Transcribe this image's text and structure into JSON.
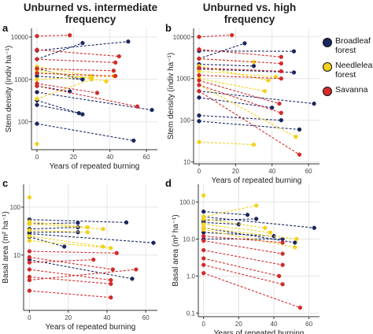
{
  "figure": {
    "groups": [
      {
        "name": "Broadleaf forest",
        "color": "#1a2660"
      },
      {
        "name": "Needleleaf forest",
        "color": "#f2d21b"
      },
      {
        "name": "Savanna",
        "color": "#d42a2a"
      }
    ],
    "panel_titles": {
      "a": "Unburned vs. intermediate\nfrequency",
      "b": "Unburned vs. high\nfrequency"
    }
  },
  "chart_data": [
    {
      "panel": "a",
      "type": "scatter",
      "title": "Unburned vs. intermediate\nfrequency",
      "xlabel": "Years of repeated burning",
      "ylabel": "Stem density (indiv ha⁻¹)",
      "xlim": [
        -3,
        66
      ],
      "ylim": [
        22,
        16000
      ],
      "log_y": true,
      "xticks": [
        0,
        20,
        40,
        60
      ],
      "yticks": [
        100,
        1000,
        10000
      ],
      "ytick_labels": [
        "100",
        "1000",
        "10000"
      ],
      "grid": true,
      "series": [
        {
          "group": "Broadleaf forest",
          "x": [
            0,
            50
          ],
          "y": [
            4800,
            7800
          ]
        },
        {
          "group": "Broadleaf forest",
          "x": [
            0,
            25
          ],
          "y": [
            3000,
            7200
          ]
        },
        {
          "group": "Broadleaf forest",
          "x": [
            0,
            25
          ],
          "y": [
            1800,
            1000
          ]
        },
        {
          "group": "Broadleaf forest",
          "x": [
            0,
            25
          ],
          "y": [
            1200,
            1000
          ]
        },
        {
          "group": "Broadleaf forest",
          "x": [
            0,
            18
          ],
          "y": [
            700,
            520
          ]
        },
        {
          "group": "Broadleaf forest",
          "x": [
            0,
            63
          ],
          "y": [
            500,
            190
          ]
        },
        {
          "group": "Broadleaf forest",
          "x": [
            0,
            25
          ],
          "y": [
            320,
            150
          ]
        },
        {
          "group": "Broadleaf forest",
          "x": [
            0,
            23
          ],
          "y": [
            250,
            160
          ]
        },
        {
          "group": "Broadleaf forest",
          "x": [
            0,
            53
          ],
          "y": [
            90,
            36
          ]
        },
        {
          "group": "Needleleaf forest",
          "x": [
            0,
            30
          ],
          "y": [
            2000,
            1200
          ]
        },
        {
          "group": "Needleleaf forest",
          "x": [
            0,
            38
          ],
          "y": [
            1700,
            900
          ]
        },
        {
          "group": "Needleleaf forest",
          "x": [
            0,
            30
          ],
          "y": [
            1500,
            1100
          ]
        },
        {
          "group": "Needleleaf forest",
          "x": [
            0,
            42
          ],
          "y": [
            1000,
            1200
          ]
        },
        {
          "group": "Needleleaf forest",
          "x": [
            0,
            30
          ],
          "y": [
            350,
            1000
          ]
        },
        {
          "group": "Needleleaf forest",
          "x": [
            0
          ],
          "y": [
            30
          ]
        },
        {
          "group": "Savanna",
          "x": [
            0,
            18
          ],
          "y": [
            10500,
            11000
          ]
        },
        {
          "group": "Savanna",
          "x": [
            0,
            45
          ],
          "y": [
            5000,
            3500
          ]
        },
        {
          "group": "Savanna",
          "x": [
            0,
            43
          ],
          "y": [
            3000,
            2500
          ]
        },
        {
          "group": "Savanna",
          "x": [
            0,
            42
          ],
          "y": [
            1800,
            1600
          ]
        },
        {
          "group": "Savanna",
          "x": [
            0,
            43
          ],
          "y": [
            1400,
            1200
          ]
        },
        {
          "group": "Savanna",
          "x": [
            0,
            33
          ],
          "y": [
            800,
            480
          ]
        },
        {
          "group": "Savanna",
          "x": [
            0,
            55
          ],
          "y": [
            700,
            230
          ]
        }
      ]
    },
    {
      "panel": "b",
      "type": "scatter",
      "title": "Unburned vs. high\nfrequency",
      "xlabel": "Years of repeated burning",
      "ylabel": "Stem density (indiv ha⁻¹)",
      "xlim": [
        -3,
        66
      ],
      "ylim": [
        9,
        16000
      ],
      "log_y": true,
      "xticks": [
        0,
        20,
        40,
        60
      ],
      "yticks": [
        10,
        100,
        1000,
        10000
      ],
      "ytick_labels": [
        "10",
        "100",
        "1000",
        "10000"
      ],
      "grid": true,
      "series": [
        {
          "group": "Broadleaf forest",
          "x": [
            0,
            52
          ],
          "y": [
            4600,
            4500
          ]
        },
        {
          "group": "Broadleaf forest",
          "x": [
            0,
            25
          ],
          "y": [
            3000,
            7000
          ]
        },
        {
          "group": "Broadleaf forest",
          "x": [
            0,
            30
          ],
          "y": [
            2200,
            2000
          ]
        },
        {
          "group": "Broadleaf forest",
          "x": [
            0,
            52
          ],
          "y": [
            1700,
            1400
          ]
        },
        {
          "group": "Broadleaf forest",
          "x": [
            0,
            63
          ],
          "y": [
            500,
            250
          ]
        },
        {
          "group": "Broadleaf forest",
          "x": [
            0,
            40
          ],
          "y": [
            350,
            200
          ]
        },
        {
          "group": "Broadleaf forest",
          "x": [
            0,
            45
          ],
          "y": [
            130,
            100
          ]
        },
        {
          "group": "Broadleaf forest",
          "x": [
            0,
            55
          ],
          "y": [
            95,
            60
          ]
        },
        {
          "group": "Needleleaf forest",
          "x": [
            0,
            30
          ],
          "y": [
            3000,
            2500
          ]
        },
        {
          "group": "Needleleaf forest",
          "x": [
            0,
            38
          ],
          "y": [
            2000,
            900
          ]
        },
        {
          "group": "Needleleaf forest",
          "x": [
            0,
            42
          ],
          "y": [
            1500,
            1100
          ]
        },
        {
          "group": "Needleleaf forest",
          "x": [
            0,
            36
          ],
          "y": [
            1000,
            500
          ]
        },
        {
          "group": "Needleleaf forest",
          "x": [
            0,
            53
          ],
          "y": [
            700,
            40
          ]
        },
        {
          "group": "Needleleaf forest",
          "x": [
            0,
            30
          ],
          "y": [
            30,
            26
          ]
        },
        {
          "group": "Savanna",
          "x": [
            0,
            18
          ],
          "y": [
            10000,
            11000
          ]
        },
        {
          "group": "Savanna",
          "x": [
            0,
            45
          ],
          "y": [
            5000,
            3300
          ]
        },
        {
          "group": "Savanna",
          "x": [
            0,
            45
          ],
          "y": [
            3000,
            2300
          ]
        },
        {
          "group": "Savanna",
          "x": [
            0,
            45
          ],
          "y": [
            1800,
            1500
          ]
        },
        {
          "group": "Savanna",
          "x": [
            0,
            45
          ],
          "y": [
            1200,
            1000
          ]
        },
        {
          "group": "Savanna",
          "x": [
            0,
            44
          ],
          "y": [
            900,
            250
          ]
        },
        {
          "group": "Savanna",
          "x": [
            0,
            45
          ],
          "y": [
            700,
            150
          ]
        },
        {
          "group": "Savanna",
          "x": [
            0,
            55
          ],
          "y": [
            500,
            15
          ]
        }
      ]
    },
    {
      "panel": "c",
      "type": "scatter",
      "xlabel": "Years of repeated burning",
      "ylabel": "Basal area (m² ha⁻¹)",
      "xlim": [
        -3,
        66
      ],
      "ylim": [
        0.7,
        300
      ],
      "log_y": true,
      "xticks": [
        0,
        20,
        40,
        60
      ],
      "yticks": [
        10,
        100
      ],
      "ytick_labels": [
        "10",
        "100"
      ],
      "grid": true,
      "series": [
        {
          "group": "Broadleaf forest",
          "x": [
            0,
            50
          ],
          "y": [
            55,
            48
          ]
        },
        {
          "group": "Broadleaf forest",
          "x": [
            0,
            25
          ],
          "y": [
            45,
            47
          ]
        },
        {
          "group": "Broadleaf forest",
          "x": [
            0,
            25
          ],
          "y": [
            35,
            38
          ]
        },
        {
          "group": "Broadleaf forest",
          "x": [
            0,
            25
          ],
          "y": [
            30,
            30
          ]
        },
        {
          "group": "Broadleaf forest",
          "x": [
            0,
            64
          ],
          "y": [
            28,
            18
          ]
        },
        {
          "group": "Broadleaf forest",
          "x": [
            0,
            18
          ],
          "y": [
            24,
            15
          ]
        },
        {
          "group": "Broadleaf forest",
          "x": [
            0,
            53
          ],
          "y": [
            8,
            3.2
          ]
        },
        {
          "group": "Needleleaf forest",
          "x": [
            0
          ],
          "y": [
            160
          ]
        },
        {
          "group": "Needleleaf forest",
          "x": [
            0,
            30
          ],
          "y": [
            50,
            38
          ]
        },
        {
          "group": "Needleleaf forest",
          "x": [
            0,
            38
          ],
          "y": [
            45,
            35
          ]
        },
        {
          "group": "Needleleaf forest",
          "x": [
            0,
            30
          ],
          "y": [
            33,
            30
          ]
        },
        {
          "group": "Needleleaf forest",
          "x": [
            0,
            38
          ],
          "y": [
            25,
            15
          ]
        },
        {
          "group": "Needleleaf forest",
          "x": [
            0,
            42
          ],
          "y": [
            20,
            14
          ]
        },
        {
          "group": "Savanna",
          "x": [
            0,
            45
          ],
          "y": [
            12,
            11
          ]
        },
        {
          "group": "Savanna",
          "x": [
            0,
            43
          ],
          "y": [
            9,
            5
          ]
        },
        {
          "group": "Savanna",
          "x": [
            0,
            33
          ],
          "y": [
            7,
            8
          ]
        },
        {
          "group": "Savanna",
          "x": [
            0,
            42
          ],
          "y": [
            5,
            3
          ]
        },
        {
          "group": "Savanna",
          "x": [
            0,
            42
          ],
          "y": [
            3.5,
            2.5
          ]
        },
        {
          "group": "Savanna",
          "x": [
            0,
            55
          ],
          "y": [
            3,
            5
          ]
        },
        {
          "group": "Savanna",
          "x": [
            0,
            42
          ],
          "y": [
            1.8,
            1.3
          ]
        }
      ]
    },
    {
      "panel": "d",
      "type": "scatter",
      "xlabel": "Years of repeated burning",
      "ylabel": "Basal area (m² ha⁻¹)",
      "xlim": [
        -3,
        66
      ],
      "ylim": [
        0.08,
        300
      ],
      "log_y": true,
      "xticks": [
        0,
        20,
        40,
        60
      ],
      "yticks": [
        0.1,
        1.0,
        10.0,
        100.0
      ],
      "ytick_labels": [
        "0.1",
        "1.0",
        "10.0",
        "100.0"
      ],
      "grid": true,
      "series": [
        {
          "group": "Broadleaf forest",
          "x": [
            0,
            25
          ],
          "y": [
            55,
            45
          ]
        },
        {
          "group": "Broadleaf forest",
          "x": [
            0,
            63
          ],
          "y": [
            40,
            20
          ]
        },
        {
          "group": "Broadleaf forest",
          "x": [
            0,
            30
          ],
          "y": [
            32,
            35
          ]
        },
        {
          "group": "Broadleaf forest",
          "x": [
            0,
            20
          ],
          "y": [
            28,
            25
          ]
        },
        {
          "group": "Broadleaf forest",
          "x": [
            0,
            52
          ],
          "y": [
            20,
            8
          ]
        },
        {
          "group": "Broadleaf forest",
          "x": [
            0,
            40
          ],
          "y": [
            15,
            12
          ]
        },
        {
          "group": "Broadleaf forest",
          "x": [
            0,
            45
          ],
          "y": [
            10,
            10
          ]
        },
        {
          "group": "Needleleaf forest",
          "x": [
            0
          ],
          "y": [
            150
          ]
        },
        {
          "group": "Needleleaf forest",
          "x": [
            0,
            30
          ],
          "y": [
            40,
            80
          ]
        },
        {
          "group": "Needleleaf forest",
          "x": [
            0,
            35
          ],
          "y": [
            35,
            20
          ]
        },
        {
          "group": "Needleleaf forest",
          "x": [
            0,
            38
          ],
          "y": [
            25,
            15
          ]
        },
        {
          "group": "Needleleaf forest",
          "x": [
            0,
            53
          ],
          "y": [
            20,
            10
          ]
        },
        {
          "group": "Needleleaf forest",
          "x": [
            0,
            52
          ],
          "y": [
            18,
            6
          ]
        },
        {
          "group": "Savanna",
          "x": [
            0,
            45
          ],
          "y": [
            12,
            8
          ]
        },
        {
          "group": "Savanna",
          "x": [
            0,
            45
          ],
          "y": [
            9,
            4
          ]
        },
        {
          "group": "Savanna",
          "x": [
            0,
            45
          ],
          "y": [
            5,
            2
          ]
        },
        {
          "group": "Savanna",
          "x": [
            0,
            43
          ],
          "y": [
            3,
            1
          ]
        },
        {
          "group": "Savanna",
          "x": [
            0,
            45
          ],
          "y": [
            2,
            0.6
          ]
        },
        {
          "group": "Savanna",
          "x": [
            0,
            55
          ],
          "y": [
            1.2,
            0.14
          ]
        }
      ]
    }
  ]
}
